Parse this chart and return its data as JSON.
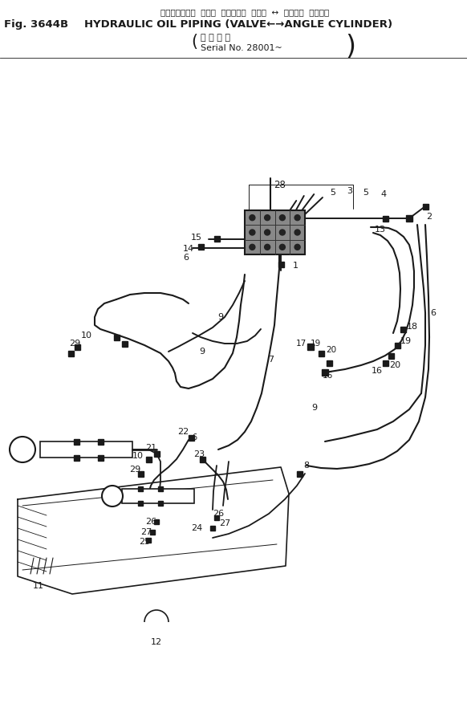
{
  "bg_color": "#ffffff",
  "line_color": "#1a1a1a",
  "fig_width": 5.82,
  "fig_height": 8.92,
  "title_jp": "ハイドロリック  オイル  パイピング  バルブ  ↔  アングル  シリンダ",
  "title_en_left": "Fig. 3644B",
  "title_en_right": "HYDRAULIC OIL PIPING (VALVE←→ANGLE CYLINDER)",
  "serial_jp": "適 用 号 機",
  "serial_en": "Serial No. 28001~",
  "lw_pipe": 1.4,
  "lw_frame": 1.2,
  "lw_thin": 0.7,
  "connector_size": 0.006
}
